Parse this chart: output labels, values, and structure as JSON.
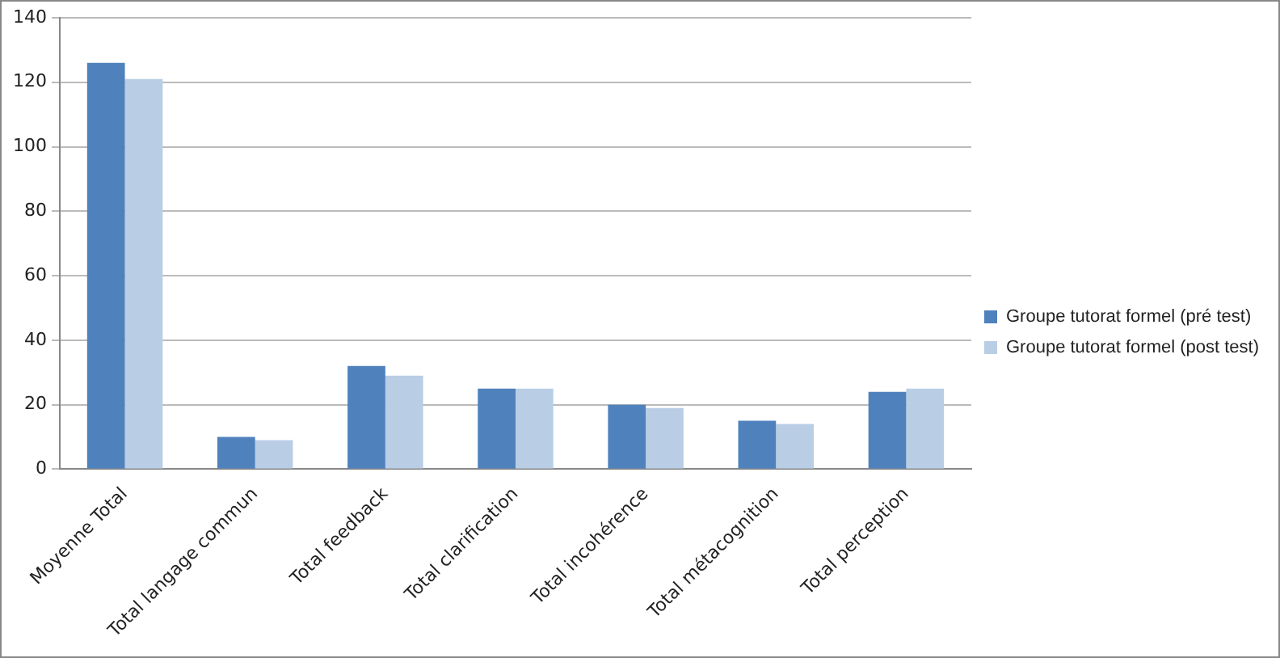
{
  "chart_data": {
    "type": "bar",
    "categories": [
      "Moyenne Total",
      "Total langage commun",
      "Total feedback",
      "Total clarification",
      "Total incohérence",
      "Total métacognition",
      "Total perception"
    ],
    "series": [
      {
        "name": "Groupe tutorat formel (pré test)",
        "color": "#4f81bd",
        "values": [
          126,
          10,
          32,
          25,
          20,
          15,
          24
        ]
      },
      {
        "name": "Groupe tutorat formel (post test)",
        "color": "#b9cde5",
        "values": [
          121,
          9,
          29,
          25,
          19,
          14,
          25
        ]
      }
    ],
    "ylim": [
      0,
      140
    ],
    "yticks": [
      0,
      20,
      40,
      60,
      80,
      100,
      120,
      140
    ],
    "grid": "y",
    "legend": "right"
  }
}
